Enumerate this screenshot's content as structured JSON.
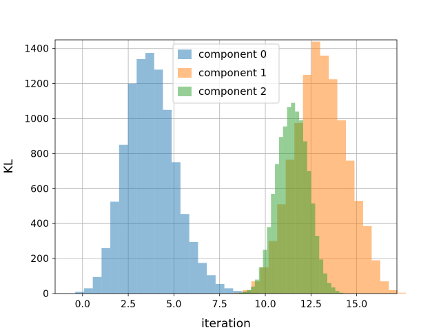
{
  "chart_data": {
    "type": "bar",
    "xlabel": "iteration",
    "ylabel": "KL",
    "xlim": [
      -1.5,
      17.2
    ],
    "ylim": [
      0,
      1450
    ],
    "xticks": [
      0.0,
      2.5,
      5.0,
      7.5,
      10.0,
      12.5,
      15.0
    ],
    "xtick_labels": [
      "0.0",
      "2.5",
      "5.0",
      "7.5",
      "10.0",
      "12.5",
      "15.0"
    ],
    "yticks": [
      0,
      200,
      400,
      600,
      800,
      1000,
      1200,
      1400
    ],
    "ytick_labels": [
      "0",
      "200",
      "400",
      "600",
      "800",
      "1000",
      "1200",
      "1400"
    ],
    "grid": true,
    "legend_position": "top-center",
    "series": [
      {
        "name": "component 0",
        "color": "#1f77b4",
        "alpha": 0.5,
        "bin_start": -0.4,
        "bin_width": 0.48,
        "values": [
          10,
          30,
          95,
          260,
          525,
          850,
          1200,
          1340,
          1375,
          1280,
          1050,
          750,
          455,
          295,
          175,
          105,
          55,
          30,
          15,
          10,
          5
        ]
      },
      {
        "name": "component 1",
        "color": "#ff7f0e",
        "alpha": 0.5,
        "bin_start": 8.3,
        "bin_width": 0.47,
        "values": [
          5,
          20,
          70,
          150,
          300,
          510,
          765,
          975,
          1250,
          1440,
          1360,
          1225,
          990,
          760,
          530,
          385,
          190,
          70,
          20,
          5
        ]
      },
      {
        "name": "component 2",
        "color": "#2ca02c",
        "alpha": 0.5,
        "bin_start": 8.55,
        "bin_width": 0.22,
        "values": [
          5,
          10,
          20,
          40,
          80,
          150,
          250,
          380,
          570,
          740,
          895,
          955,
          1065,
          1090,
          1040,
          990,
          870,
          700,
          515,
          330,
          195,
          115,
          60,
          35,
          15,
          5
        ]
      }
    ]
  }
}
